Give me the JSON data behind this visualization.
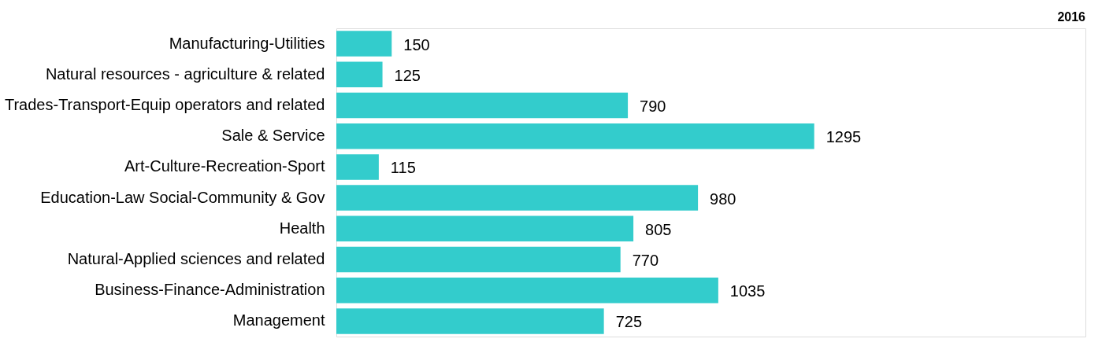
{
  "chart_data": {
    "type": "bar",
    "orientation": "horizontal",
    "title": "2016",
    "categories": [
      "Manufacturing-Utilities",
      "Natural resources - agriculture & related",
      "Trades-Transport-Equip operators and related",
      "Sale & Service",
      "Art-Culture-Recreation-Sport",
      "Education-Law Social-Community & Gov",
      "Health",
      "Natural-Applied sciences and related",
      "Business-Finance-Administration",
      "Management"
    ],
    "values": [
      150,
      125,
      790,
      1295,
      115,
      980,
      805,
      770,
      1035,
      725
    ],
    "color": "#33cccc",
    "data_labels": true,
    "xlim": [
      0,
      2030
    ],
    "tick_labels": "y"
  }
}
